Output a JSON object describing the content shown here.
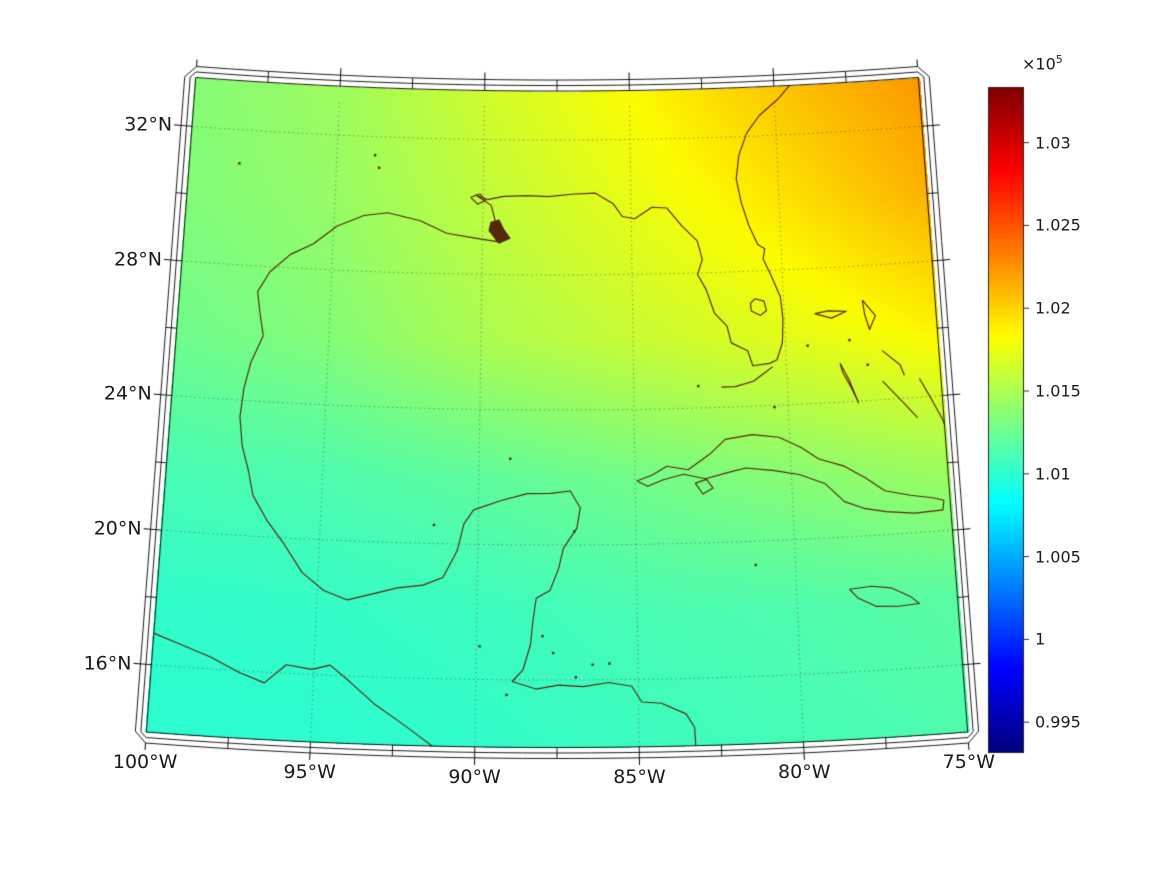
{
  "figure": {
    "background": "#ffffff"
  },
  "axes": {
    "xticks": [
      {
        "value": -100,
        "label": "100°W"
      },
      {
        "value": -95,
        "label": "95°W"
      },
      {
        "value": -90,
        "label": "90°W"
      },
      {
        "value": -85,
        "label": "85°W"
      },
      {
        "value": -80,
        "label": "80°W"
      },
      {
        "value": -75,
        "label": "75°W"
      }
    ],
    "yticks": [
      {
        "value": 32,
        "label": "32°N"
      },
      {
        "value": 28,
        "label": "28°N"
      },
      {
        "value": 24,
        "label": "24°N"
      },
      {
        "value": 20,
        "label": "20°N"
      },
      {
        "value": 16,
        "label": "16°N"
      }
    ],
    "grid_lons": [
      -95,
      -90,
      -85,
      -80
    ],
    "grid_lats": [
      16,
      20,
      24,
      28,
      32
    ]
  },
  "colorbar": {
    "colormap": "jet",
    "clim_1e5": [
      0.9932,
      1.0333
    ],
    "exponent_base": "×10",
    "exponent_power": "5",
    "ticks": [
      {
        "value": 1.03,
        "label": "1.03"
      },
      {
        "value": 1.025,
        "label": "1.025"
      },
      {
        "value": 1.02,
        "label": "1.02"
      },
      {
        "value": 1.015,
        "label": "1.015"
      },
      {
        "value": 1.01,
        "label": "1.01"
      },
      {
        "value": 1.005,
        "label": "1.005"
      },
      {
        "value": 1.0,
        "label": "1"
      },
      {
        "value": 0.995,
        "label": "0.995"
      }
    ]
  },
  "chart_data": {
    "type": "heatmap",
    "title": "",
    "colormap": "jet",
    "clim_1e5": [
      0.9932,
      1.0333
    ],
    "projection": {
      "type": "conic",
      "center_lon": -87.5,
      "lon_range": [
        -100,
        -75
      ],
      "lat_range": [
        14,
        33.45
      ]
    },
    "grid_lats": [
      34,
      30,
      26,
      22,
      18,
      14
    ],
    "grid_lons": [
      -100,
      -95,
      -90,
      -85,
      -80,
      -75
    ],
    "values_1e5": [
      [
        1.0136,
        1.0146,
        1.0166,
        1.0184,
        1.0206,
        1.0224
      ],
      [
        1.0134,
        1.0142,
        1.0158,
        1.0174,
        1.0191,
        1.0212
      ],
      [
        1.0127,
        1.0135,
        1.015,
        1.0161,
        1.0172,
        1.0186
      ],
      [
        1.0112,
        1.0114,
        1.012,
        1.0128,
        1.0137,
        1.0147
      ],
      [
        1.0102,
        1.0103,
        1.0106,
        1.0111,
        1.0114,
        1.0118
      ],
      [
        1.01,
        1.01,
        1.0102,
        1.0106,
        1.011,
        1.0114
      ]
    ],
    "coastlines": {
      "us_gulf_atlantic": [
        [
          -97.15,
          25.95
        ],
        [
          -97.3,
          26.6
        ],
        [
          -97.42,
          27.25
        ],
        [
          -97.05,
          27.85
        ],
        [
          -96.4,
          28.4
        ],
        [
          -95.65,
          28.75
        ],
        [
          -94.9,
          29.3
        ],
        [
          -94.0,
          29.65
        ],
        [
          -93.2,
          29.76
        ],
        [
          -92.1,
          29.55
        ],
        [
          -91.2,
          29.2
        ],
        [
          -90.3,
          29.08
        ],
        [
          -89.5,
          28.98
        ],
        [
          -89.15,
          29.12
        ],
        [
          -89.55,
          29.5
        ],
        [
          -89.72,
          30.05
        ],
        [
          -90.25,
          30.35
        ],
        [
          -89.85,
          30.22
        ],
        [
          -89.3,
          30.32
        ],
        [
          -88.5,
          30.35
        ],
        [
          -87.8,
          30.32
        ],
        [
          -86.9,
          30.4
        ],
        [
          -86.2,
          30.42
        ],
        [
          -85.6,
          30.1
        ],
        [
          -85.3,
          29.72
        ],
        [
          -84.88,
          29.65
        ],
        [
          -84.3,
          29.98
        ],
        [
          -83.8,
          29.95
        ],
        [
          -83.3,
          29.4
        ],
        [
          -82.8,
          28.95
        ],
        [
          -82.65,
          28.4
        ],
        [
          -82.82,
          27.95
        ],
        [
          -82.55,
          27.5
        ],
        [
          -82.3,
          26.8
        ],
        [
          -81.9,
          26.4
        ],
        [
          -81.78,
          25.9
        ],
        [
          -81.25,
          25.65
        ],
        [
          -81.1,
          25.2
        ],
        [
          -80.55,
          25.25
        ],
        [
          -80.3,
          25.35
        ],
        [
          -80.1,
          25.85
        ],
        [
          -80.05,
          26.55
        ],
        [
          -80.1,
          27.2
        ],
        [
          -80.4,
          27.9
        ],
        [
          -80.62,
          28.35
        ],
        [
          -80.55,
          28.65
        ],
        [
          -80.78,
          28.78
        ],
        [
          -81.05,
          29.35
        ],
        [
          -81.28,
          30.05
        ],
        [
          -81.42,
          30.75
        ],
        [
          -81.3,
          31.45
        ],
        [
          -81.0,
          32.1
        ],
        [
          -80.55,
          32.6
        ],
        [
          -79.9,
          33.05
        ],
        [
          -79.35,
          33.55
        ]
      ],
      "mexico_centam": [
        [
          -97.15,
          25.95
        ],
        [
          -97.5,
          25.15
        ],
        [
          -97.68,
          24.35
        ],
        [
          -97.75,
          23.5
        ],
        [
          -97.62,
          22.65
        ],
        [
          -97.38,
          21.95
        ],
        [
          -97.18,
          21.2
        ],
        [
          -96.7,
          20.5
        ],
        [
          -96.1,
          19.8
        ],
        [
          -95.5,
          19.0
        ],
        [
          -94.8,
          18.5
        ],
        [
          -94.05,
          18.25
        ],
        [
          -93.3,
          18.45
        ],
        [
          -92.5,
          18.66
        ],
        [
          -91.7,
          18.76
        ],
        [
          -91.08,
          19.0
        ],
        [
          -90.65,
          19.8
        ],
        [
          -90.45,
          20.6
        ],
        [
          -90.15,
          21.02
        ],
        [
          -89.3,
          21.3
        ],
        [
          -88.45,
          21.52
        ],
        [
          -87.7,
          21.53
        ],
        [
          -87.08,
          21.6
        ],
        [
          -86.76,
          21.1
        ],
        [
          -86.87,
          20.5
        ],
        [
          -87.3,
          19.9
        ],
        [
          -87.45,
          19.3
        ],
        [
          -87.72,
          18.65
        ],
        [
          -88.15,
          18.42
        ],
        [
          -88.25,
          17.75
        ],
        [
          -88.32,
          17.05
        ],
        [
          -88.55,
          16.3
        ],
        [
          -88.88,
          15.95
        ],
        [
          -88.15,
          15.73
        ],
        [
          -87.45,
          15.85
        ],
        [
          -86.7,
          15.8
        ],
        [
          -85.9,
          15.92
        ],
        [
          -85.2,
          15.8
        ],
        [
          -84.9,
          15.33
        ],
        [
          -84.3,
          15.28
        ],
        [
          -83.55,
          14.95
        ],
        [
          -83.3,
          14.55
        ],
        [
          -83.28,
          14.0
        ]
      ],
      "pacific_mexico": [
        [
          -100.05,
          16.95
        ],
        [
          -99.1,
          16.65
        ],
        [
          -98.2,
          16.35
        ],
        [
          -97.3,
          15.95
        ],
        [
          -96.5,
          15.68
        ],
        [
          -95.85,
          16.25
        ],
        [
          -95.05,
          16.15
        ],
        [
          -94.5,
          16.3
        ],
        [
          -93.9,
          15.85
        ],
        [
          -93.1,
          15.2
        ],
        [
          -92.35,
          14.72
        ],
        [
          -91.8,
          14.35
        ],
        [
          -91.3,
          14.0
        ]
      ],
      "cuba": [
        [
          -84.95,
          21.88
        ],
        [
          -84.45,
          22.05
        ],
        [
          -83.98,
          22.3
        ],
        [
          -83.3,
          22.18
        ],
        [
          -82.6,
          22.62
        ],
        [
          -82.08,
          23.05
        ],
        [
          -81.2,
          23.16
        ],
        [
          -80.35,
          23.05
        ],
        [
          -79.65,
          22.72
        ],
        [
          -79.1,
          22.35
        ],
        [
          -78.3,
          22.1
        ],
        [
          -77.65,
          21.72
        ],
        [
          -77.05,
          21.3
        ],
        [
          -76.25,
          21.12
        ],
        [
          -75.55,
          21.0
        ],
        [
          -75.2,
          20.9
        ],
        [
          -75.25,
          20.62
        ],
        [
          -76.15,
          20.58
        ],
        [
          -77.05,
          20.68
        ],
        [
          -77.75,
          20.82
        ],
        [
          -78.35,
          21.05
        ],
        [
          -78.95,
          21.62
        ],
        [
          -79.75,
          21.92
        ],
        [
          -80.6,
          22.08
        ],
        [
          -81.45,
          22.18
        ],
        [
          -81.95,
          22.08
        ],
        [
          -82.75,
          21.9
        ],
        [
          -83.45,
          22.05
        ],
        [
          -84.1,
          21.9
        ],
        [
          -84.6,
          21.72
        ],
        [
          -84.95,
          21.88
        ]
      ],
      "isla_juventud": [
        [
          -83.08,
          21.78
        ],
        [
          -82.72,
          21.88
        ],
        [
          -82.52,
          21.62
        ],
        [
          -82.85,
          21.45
        ],
        [
          -83.08,
          21.78
        ]
      ],
      "jamaica": [
        [
          -78.35,
          18.45
        ],
        [
          -77.65,
          18.5
        ],
        [
          -77.05,
          18.42
        ],
        [
          -76.45,
          18.12
        ],
        [
          -76.2,
          17.9
        ],
        [
          -76.85,
          17.86
        ],
        [
          -77.55,
          17.9
        ],
        [
          -78.1,
          18.18
        ],
        [
          -78.35,
          18.45
        ]
      ],
      "grand_bahama": [
        [
          -79.0,
          26.66
        ],
        [
          -78.45,
          26.5
        ],
        [
          -77.95,
          26.68
        ],
        [
          -78.55,
          26.72
        ],
        [
          -79.0,
          26.66
        ]
      ],
      "abaco": [
        [
          -77.4,
          26.98
        ],
        [
          -77.0,
          26.5
        ],
        [
          -77.22,
          26.1
        ],
        [
          -77.35,
          26.55
        ],
        [
          -77.4,
          26.98
        ]
      ],
      "andros": [
        [
          -78.25,
          25.15
        ],
        [
          -78.0,
          24.68
        ],
        [
          -77.72,
          23.95
        ],
        [
          -77.95,
          24.45
        ],
        [
          -78.18,
          24.88
        ],
        [
          -78.25,
          25.15
        ]
      ],
      "eleuthera": [
        [
          -76.85,
          25.45
        ],
        [
          -76.3,
          25.0
        ],
        [
          -76.18,
          24.68
        ]
      ],
      "exuma": [
        [
          -76.9,
          24.55
        ],
        [
          -76.25,
          23.85
        ],
        [
          -75.85,
          23.4
        ]
      ],
      "cat_long_island": [
        [
          -75.7,
          24.55
        ],
        [
          -75.35,
          23.9
        ],
        [
          -75.05,
          23.3
        ],
        [
          -74.95,
          23.0
        ]
      ],
      "lake_okeechobee": [
        [
          -80.95,
          27.18
        ],
        [
          -80.65,
          27.1
        ],
        [
          -80.58,
          26.82
        ],
        [
          -80.78,
          26.68
        ],
        [
          -81.08,
          26.82
        ],
        [
          -81.1,
          27.05
        ],
        [
          -80.95,
          27.18
        ]
      ],
      "lake_pontchartrain": [
        [
          -90.42,
          30.28
        ],
        [
          -90.1,
          30.38
        ],
        [
          -89.92,
          30.2
        ],
        [
          -90.18,
          30.08
        ],
        [
          -90.42,
          30.28
        ]
      ],
      "florida_keys": [
        [
          -80.45,
          25.15
        ],
        [
          -80.72,
          24.98
        ],
        [
          -81.1,
          24.74
        ],
        [
          -81.7,
          24.6
        ],
        [
          -82.15,
          24.6
        ]
      ]
    },
    "filled_regions": {
      "mississippi_delta": [
        [
          -89.78,
          29.3
        ],
        [
          -89.45,
          28.93
        ],
        [
          -89.08,
          29.08
        ],
        [
          -89.3,
          29.35
        ],
        [
          -89.45,
          29.62
        ],
        [
          -89.72,
          29.55
        ],
        [
          -89.78,
          29.3
        ]
      ]
    },
    "island_points": [
      [
        -82.9,
        24.65
      ],
      [
        -79.28,
        25.72
      ],
      [
        -77.9,
        25.82
      ],
      [
        -77.35,
        25.06
      ],
      [
        -80.45,
        23.95
      ],
      [
        -86.92,
        16.08
      ],
      [
        -86.4,
        16.45
      ],
      [
        -85.88,
        16.48
      ],
      [
        -81.25,
        19.3
      ],
      [
        -87.95,
        17.3
      ],
      [
        -87.62,
        16.8
      ],
      [
        -93.7,
        31.45
      ],
      [
        -93.55,
        31.08
      ],
      [
        -98.3,
        31.0
      ],
      [
        -89.0,
        22.55
      ],
      [
        -89.9,
        16.98
      ],
      [
        -89.05,
        15.55
      ],
      [
        -86.95,
        20.4
      ],
      [
        -91.4,
        20.55
      ]
    ]
  }
}
